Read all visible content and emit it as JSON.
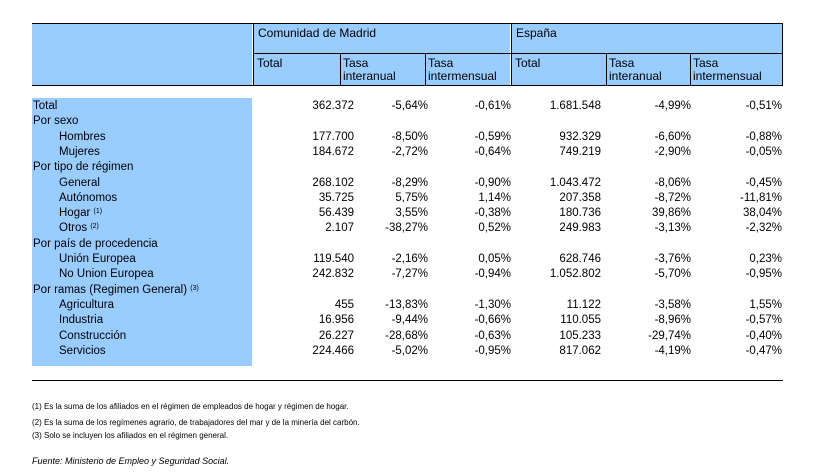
{
  "header": {
    "group1": "Comunidad de Madrid",
    "group2": "España",
    "total": "Total",
    "tasa": "Tasa",
    "interanual": "interanual",
    "intermensual": "intermensual"
  },
  "rows": [
    {
      "label": "Total",
      "indent": false,
      "sup": "",
      "v": [
        "362.372",
        "-5,64%",
        "-0,61%",
        "1.681.548",
        "-4,99%",
        "-0,51%"
      ]
    },
    {
      "label": "Por sexo",
      "indent": false,
      "sup": "",
      "v": [
        "",
        "",
        "",
        "",
        "",
        ""
      ]
    },
    {
      "label": "Hombres",
      "indent": true,
      "sup": "",
      "v": [
        "177.700",
        "-8,50%",
        "-0,59%",
        "932.329",
        "-6,60%",
        "-0,88%"
      ]
    },
    {
      "label": "Mujeres",
      "indent": true,
      "sup": "",
      "v": [
        "184.672",
        "-2,72%",
        "-0,64%",
        "749.219",
        "-2,90%",
        "-0,05%"
      ]
    },
    {
      "label": "Por tipo de régimen",
      "indent": false,
      "sup": "",
      "v": [
        "",
        "",
        "",
        "",
        "",
        ""
      ]
    },
    {
      "label": "General",
      "indent": true,
      "sup": "",
      "v": [
        "268.102",
        "-8,29%",
        "-0,90%",
        "1.043.472",
        "-8,06%",
        "-0,45%"
      ]
    },
    {
      "label": "Autónomos",
      "indent": true,
      "sup": "",
      "v": [
        "35.725",
        "5,75%",
        "1,14%",
        "207.358",
        "-8,72%",
        "-11,81%"
      ]
    },
    {
      "label": "Hogar",
      "indent": true,
      "sup": "(1)",
      "v": [
        "56.439",
        "3,55%",
        "-0,38%",
        "180.736",
        "39,86%",
        "38,04%"
      ]
    },
    {
      "label": "Otros",
      "indent": true,
      "sup": "(2)",
      "v": [
        "2.107",
        "-38,27%",
        "0,52%",
        "249.983",
        "-3,13%",
        "-2,32%"
      ]
    },
    {
      "label": "Por país de procedencia",
      "indent": false,
      "sup": "",
      "v": [
        "",
        "",
        "",
        "",
        "",
        ""
      ]
    },
    {
      "label": "Unión Europea",
      "indent": true,
      "sup": "",
      "v": [
        "119.540",
        "-2,16%",
        "0,05%",
        "628.746",
        "-3,76%",
        "0,23%"
      ]
    },
    {
      "label": "No Union Europea",
      "indent": true,
      "sup": "",
      "v": [
        "242.832",
        "-7,27%",
        "-0,94%",
        "1.052.802",
        "-5,70%",
        "-0,95%"
      ]
    },
    {
      "label": "Por ramas (Regimen General)",
      "indent": false,
      "sup": "(3)",
      "v": [
        "",
        "",
        "",
        "",
        "",
        ""
      ]
    },
    {
      "label": "Agricultura",
      "indent": true,
      "sup": "",
      "v": [
        "455",
        "-13,83%",
        "-1,30%",
        "11.122",
        "-3,58%",
        "1,55%"
      ]
    },
    {
      "label": "Industria",
      "indent": true,
      "sup": "",
      "v": [
        "16.956",
        "-9,44%",
        "-0,66%",
        "110.055",
        "-8,96%",
        "-0,57%"
      ]
    },
    {
      "label": "Construcción",
      "indent": true,
      "sup": "",
      "v": [
        "26.227",
        "-28,68%",
        "-0,63%",
        "105.233",
        "-29,74%",
        "-0,40%"
      ]
    },
    {
      "label": "Servicios",
      "indent": true,
      "sup": "",
      "v": [
        "224.466",
        "-5,02%",
        "-0,95%",
        "817.062",
        "-4,19%",
        "-0,47%"
      ]
    }
  ],
  "footnotes": [
    "(1) Es la suma de los afiliados en el régimen de empleados de hogar y régimen de hogar.",
    "(2) Es la suma de los regímenes  agrario, de trabajadores del mar y de la minería del carbón.",
    "(3) Solo se incluyen los afiliados en el régimen general."
  ],
  "source": "Fuente: Ministerio de Empleo y Seguridad Social."
}
